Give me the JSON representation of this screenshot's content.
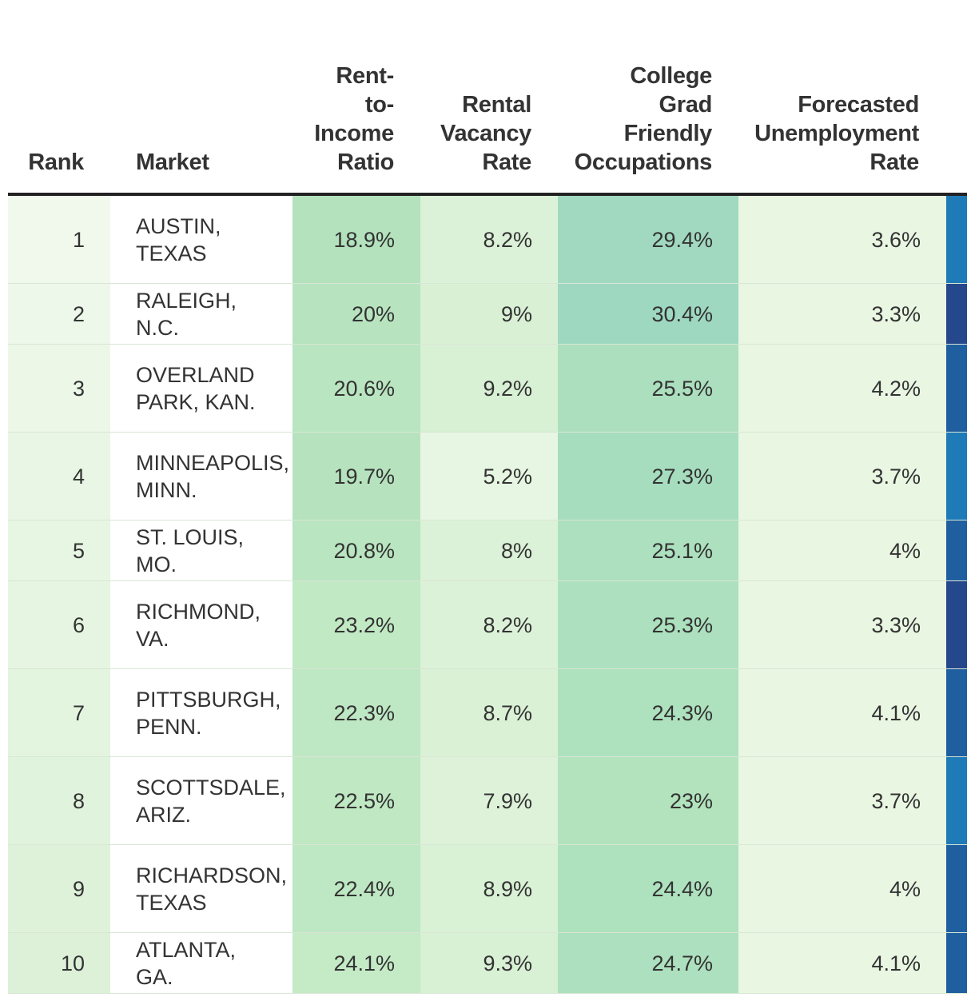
{
  "chart_data": {
    "type": "table",
    "columns": [
      "Rank",
      "Market",
      "Rent-to-Income Ratio",
      "Rental Vacancy Rate",
      "College Grad Friendly Occupations",
      "Forecasted Unemployment Rate"
    ],
    "rows": [
      {
        "rank": "1",
        "market": "AUSTIN, TEXAS",
        "rent_to_income": "18.9%",
        "vacancy": "8.2%",
        "college": "29.4%",
        "unemployment": "3.6%"
      },
      {
        "rank": "2",
        "market": "RALEIGH, N.C.",
        "rent_to_income": "20%",
        "vacancy": "9%",
        "college": "30.4%",
        "unemployment": "3.3%"
      },
      {
        "rank": "3",
        "market": "OVERLAND PARK, KAN.",
        "rent_to_income": "20.6%",
        "vacancy": "9.2%",
        "college": "25.5%",
        "unemployment": "4.2%"
      },
      {
        "rank": "4",
        "market": "MINNEAPOLIS, MINN.",
        "rent_to_income": "19.7%",
        "vacancy": "5.2%",
        "college": "27.3%",
        "unemployment": "3.7%"
      },
      {
        "rank": "5",
        "market": "ST. LOUIS, MO.",
        "rent_to_income": "20.8%",
        "vacancy": "8%",
        "college": "25.1%",
        "unemployment": "4%"
      },
      {
        "rank": "6",
        "market": "RICHMOND, VA.",
        "rent_to_income": "23.2%",
        "vacancy": "8.2%",
        "college": "25.3%",
        "unemployment": "3.3%"
      },
      {
        "rank": "7",
        "market": "PITTSBURGH, PENN.",
        "rent_to_income": "22.3%",
        "vacancy": "8.7%",
        "college": "24.3%",
        "unemployment": "4.1%"
      },
      {
        "rank": "8",
        "market": "SCOTTSDALE, ARIZ.",
        "rent_to_income": "22.5%",
        "vacancy": "7.9%",
        "college": "23%",
        "unemployment": "3.7%"
      },
      {
        "rank": "9",
        "market": "RICHARDSON, TEXAS",
        "rent_to_income": "22.4%",
        "vacancy": "8.9%",
        "college": "24.4%",
        "unemployment": "4%"
      },
      {
        "rank": "10",
        "market": "ATLANTA, GA.",
        "rent_to_income": "24.1%",
        "vacancy": "9.3%",
        "college": "24.7%",
        "unemployment": "4.1%"
      }
    ],
    "colors": {
      "header_rule": "#222222",
      "green_light": "#eef8ea",
      "green_mid": "#c7ebc9",
      "green_dark": "#9fd9c0",
      "blue_light": "#1f7ab8",
      "blue_mid": "#1f5fa0",
      "blue_dark": "#25488c"
    }
  }
}
